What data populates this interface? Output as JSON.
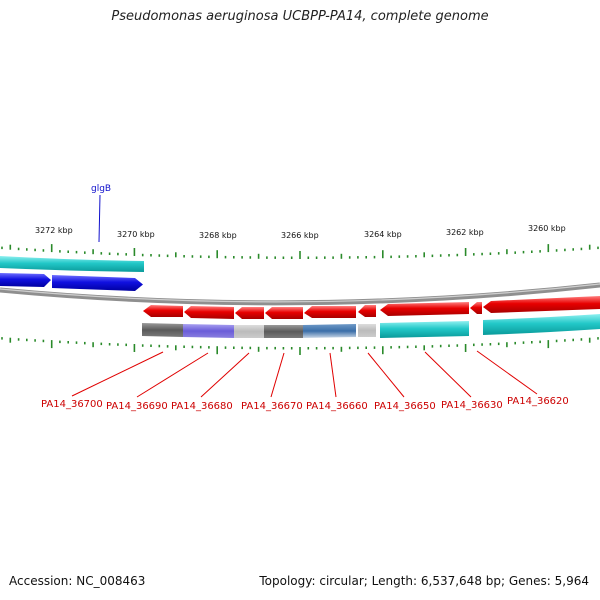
{
  "title": "Pseudomonas aeruginosa UCBPP-PA14, complete genome",
  "accession_text": "Accession: NC_008463",
  "summary_text": "Topology: circular; Length: 6,537,648 bp; Genes: 5,964",
  "colors": {
    "reverse_gene": "#e80000",
    "forward_gene": "#1010e0",
    "cds_teal": "#22c8c8",
    "backbone": "#999999",
    "tick": "#2a8a2a",
    "locus_label": "#cc0000",
    "gene_name_label": "#1010cc"
  },
  "coordinate_labels": [
    "3272 kbp",
    "3270 kbp",
    "3268 kbp",
    "3266 kbp",
    "3264 kbp",
    "3262 kbp",
    "3260 kbp"
  ],
  "gene_name_labels": [
    "glgB"
  ],
  "locus_labels": [
    "PA14_36700",
    "PA14_36690",
    "PA14_36680",
    "PA14_36670",
    "PA14_36660",
    "PA14_36650",
    "PA14_36630",
    "PA14_36620"
  ]
}
